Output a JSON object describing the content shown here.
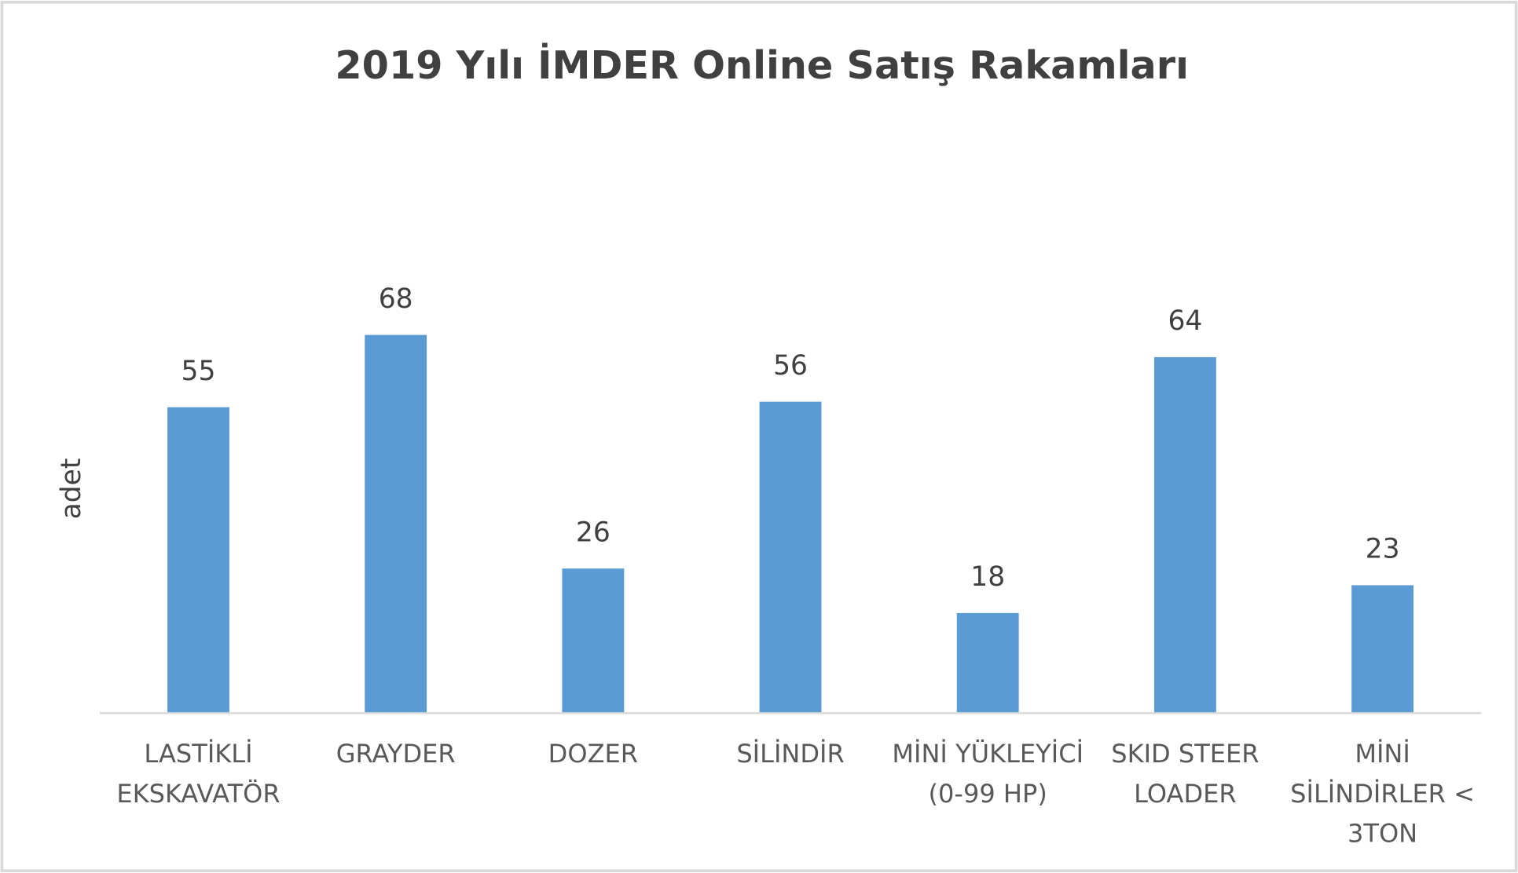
{
  "chart_data": {
    "type": "bar",
    "title": "2019 Yılı İMDER Online Satış Rakamları",
    "y_label": "adet",
    "categories": [
      "LASTİKLİ EKSKAVATÖR",
      "GRAYDER",
      "DOZER",
      "SİLİNDİR",
      "MİNİ YÜKLEYİCİ (0-99 HP)",
      "SKID STEER LOADER",
      "MİNİ SİLİNDİRLER < 3TON"
    ],
    "values": [
      55,
      68,
      26,
      56,
      18,
      64,
      23
    ],
    "color": "#5b9bd5",
    "ylim": [
      0,
      80
    ]
  }
}
